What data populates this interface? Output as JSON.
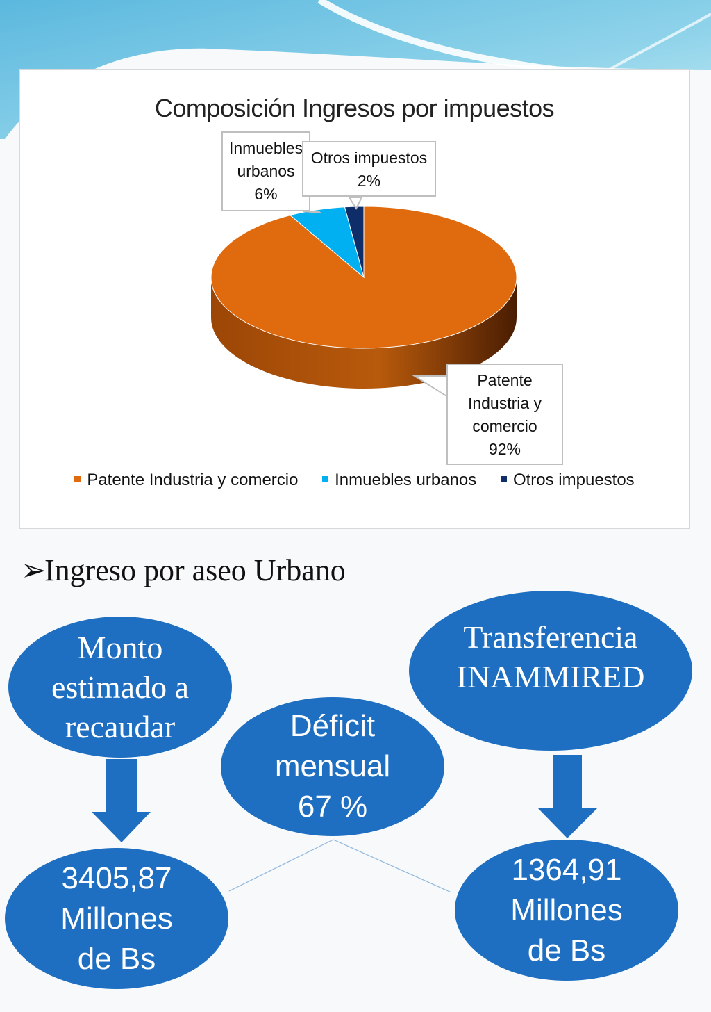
{
  "chart_data": {
    "type": "pie",
    "title": "Composición Ingresos por impuestos",
    "categories": [
      "Patente Industria y comercio",
      "Inmuebles urbanos",
      "Otros impuestos"
    ],
    "values": [
      92,
      6,
      2
    ],
    "colors": [
      "#e06a0e",
      "#00b0f0",
      "#0f2d69"
    ],
    "data_labels": [
      {
        "line1": "Patente",
        "line2": "Industria y",
        "line3": "comercio",
        "value": "92%"
      },
      {
        "line1": "Inmuebles",
        "line2": "urbanos",
        "value": "6%"
      },
      {
        "line1": "Otros impuestos",
        "value": "2%"
      }
    ],
    "legend_position": "bottom"
  },
  "bullet": {
    "text": "Ingreso por aseo Urbano"
  },
  "diagram": {
    "monto": "Monto\nestimado a\nrecaudar",
    "monto_value": "3405,87\nMillones\nde Bs",
    "deficit": "Déficit\nmensual\n67 %",
    "transferencia": "Transferencia\nINAMMIRED",
    "transferencia_value": "1364,91\nMillones\nde Bs"
  },
  "colors": {
    "node_fill": "#1e6fc1",
    "arrow_fill": "#1e6fc1"
  }
}
